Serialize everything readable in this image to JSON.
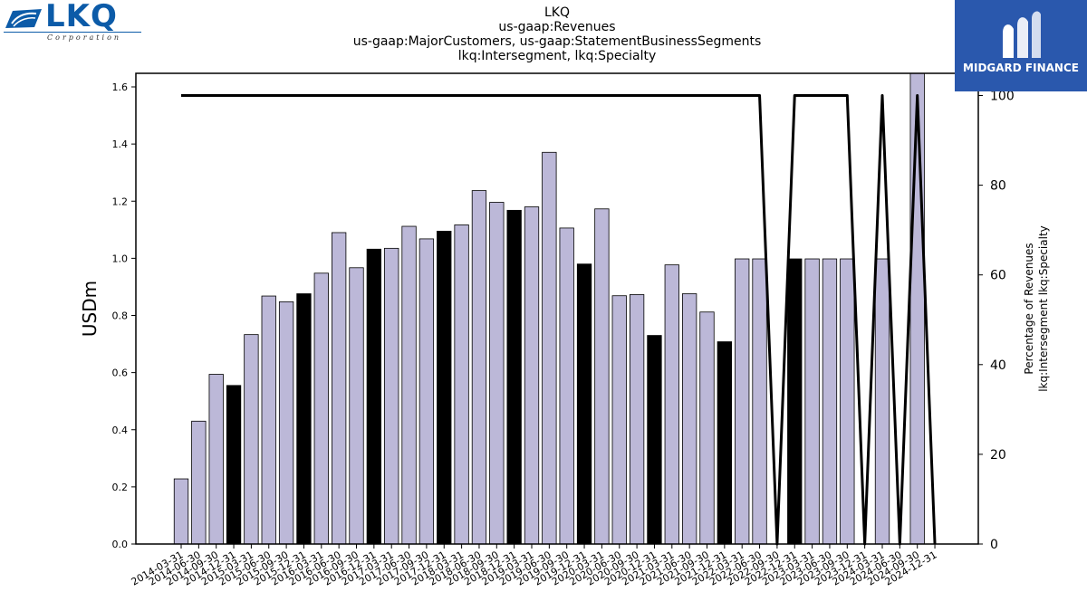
{
  "header": {
    "title_lines": [
      "LKQ",
      "us-gaap:Revenues",
      "us-gaap:MajorCustomers, us-gaap:StatementBusinessSegments",
      "lkq:Intersegment, lkq:Specialty"
    ]
  },
  "logos": {
    "lkq": {
      "text": "LKQ",
      "subtext": "Corporation",
      "color": "#0c5ba8"
    },
    "midgard": {
      "text": "MIDGARD FINANCE",
      "color": "#2a58ad"
    }
  },
  "chart_data": {
    "type": "bar",
    "ylabel": "USDm",
    "y2label_lines": [
      "Percentage of Revenues",
      "lkq:Intersegment lkq:Specialty"
    ],
    "ylim": [
      0,
      1.65
    ],
    "y2lim": [
      0,
      100
    ],
    "yticks": [
      "0.0",
      "0.2",
      "0.4",
      "0.6",
      "0.8",
      "1.0",
      "1.2",
      "1.4",
      "1.6"
    ],
    "y2ticks": [
      "0",
      "20",
      "40",
      "60",
      "80",
      "100"
    ],
    "categories": [
      "2014-03-31",
      "2014-06-30",
      "2014-09-30",
      "2014-12-31",
      "2015-03-31",
      "2015-06-30",
      "2015-09-30",
      "2015-12-31",
      "2016-03-31",
      "2016-06-30",
      "2016-09-30",
      "2016-12-31",
      "2017-03-31",
      "2017-06-30",
      "2017-09-30",
      "2017-12-31",
      "2018-03-31",
      "2018-06-30",
      "2018-09-30",
      "2018-12-31",
      "2019-03-31",
      "2019-06-30",
      "2019-09-30",
      "2019-12-31",
      "2020-03-31",
      "2020-06-30",
      "2020-09-30",
      "2020-12-31",
      "2021-03-31",
      "2021-06-30",
      "2021-09-30",
      "2021-12-31",
      "2022-03-31",
      "2022-06-30",
      "2022-09-30",
      "2022-12-31",
      "2023-03-31",
      "2023-06-30",
      "2023-09-30",
      "2023-12-31",
      "2024-03-31",
      "2024-06-30",
      "2024-09-30",
      "2024-12-31"
    ],
    "values": [
      0.228,
      0.43,
      0.594,
      0.555,
      0.733,
      0.868,
      0.848,
      0.876,
      0.948,
      1.09,
      0.967,
      1.032,
      1.035,
      1.112,
      1.068,
      1.095,
      1.117,
      1.237,
      1.196,
      1.168,
      1.18,
      1.371,
      1.106,
      0.98,
      1.173,
      0.869,
      0.873,
      0.73,
      0.977,
      0.876,
      0.812,
      0.708,
      0.998,
      0.998,
      null,
      0.998,
      0.998,
      0.998,
      0.998,
      null,
      0.998,
      null,
      1.65,
      null
    ],
    "year_end": [
      false,
      false,
      false,
      true,
      false,
      false,
      false,
      true,
      false,
      false,
      false,
      true,
      false,
      false,
      false,
      true,
      false,
      false,
      false,
      true,
      false,
      false,
      false,
      true,
      false,
      false,
      false,
      true,
      false,
      false,
      false,
      true,
      false,
      false,
      false,
      true,
      false,
      false,
      false,
      true,
      false,
      false,
      false,
      true
    ],
    "percentage": [
      100,
      100,
      100,
      100,
      100,
      100,
      100,
      100,
      100,
      100,
      100,
      100,
      100,
      100,
      100,
      100,
      100,
      100,
      100,
      100,
      100,
      100,
      100,
      100,
      100,
      100,
      100,
      100,
      100,
      100,
      100,
      100,
      100,
      100,
      0,
      100,
      100,
      100,
      100,
      0,
      100,
      0,
      100,
      0
    ],
    "colors": {
      "bar": "#bcb8d8",
      "bar_year_end": "#000000",
      "line": "#000000",
      "edge": "#000000"
    },
    "grid": false
  }
}
